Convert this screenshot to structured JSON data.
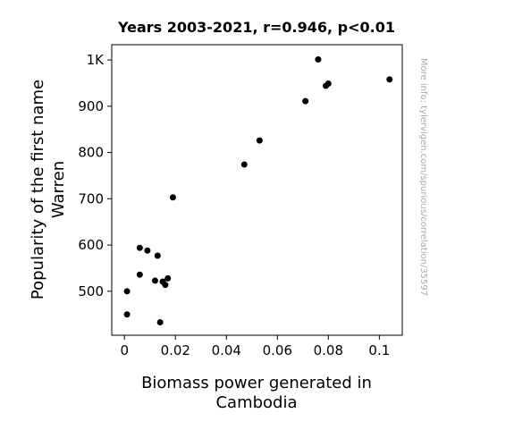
{
  "chart_data": {
    "type": "scatter",
    "title": "Years 2003-2021, r=0.946, p<0.01",
    "xlabel_lines": [
      "Biomass power generated in",
      "Cambodia"
    ],
    "ylabel_lines": [
      "Popularity of the first name",
      "Warren"
    ],
    "side_note": "More info: tylervigen.com/spurious/correlation/35597",
    "xlim": [
      -0.005,
      0.109
    ],
    "ylim": [
      405,
      1033
    ],
    "x_ticks": [
      {
        "value": 0,
        "label": "0"
      },
      {
        "value": 0.02,
        "label": "0.02"
      },
      {
        "value": 0.04,
        "label": "0.04"
      },
      {
        "value": 0.06,
        "label": "0.06"
      },
      {
        "value": 0.08,
        "label": "0.08"
      },
      {
        "value": 0.1,
        "label": "0.1"
      }
    ],
    "y_ticks": [
      {
        "value": 500,
        "label": "500"
      },
      {
        "value": 600,
        "label": "600"
      },
      {
        "value": 700,
        "label": "700"
      },
      {
        "value": 800,
        "label": "800"
      },
      {
        "value": 900,
        "label": "900"
      },
      {
        "value": 1000,
        "label": "1K"
      }
    ],
    "point_color": "#000000",
    "grid": false,
    "points": [
      {
        "x": 0.001,
        "y": 500
      },
      {
        "x": 0.001,
        "y": 450
      },
      {
        "x": 0.006,
        "y": 594
      },
      {
        "x": 0.006,
        "y": 536
      },
      {
        "x": 0.009,
        "y": 588
      },
      {
        "x": 0.012,
        "y": 523
      },
      {
        "x": 0.013,
        "y": 577
      },
      {
        "x": 0.014,
        "y": 433
      },
      {
        "x": 0.015,
        "y": 521
      },
      {
        "x": 0.016,
        "y": 514
      },
      {
        "x": 0.017,
        "y": 528
      },
      {
        "x": 0.019,
        "y": 703
      },
      {
        "x": 0.047,
        "y": 774
      },
      {
        "x": 0.053,
        "y": 826
      },
      {
        "x": 0.071,
        "y": 911
      },
      {
        "x": 0.076,
        "y": 1001
      },
      {
        "x": 0.079,
        "y": 944
      },
      {
        "x": 0.08,
        "y": 949
      },
      {
        "x": 0.104,
        "y": 958
      }
    ]
  }
}
